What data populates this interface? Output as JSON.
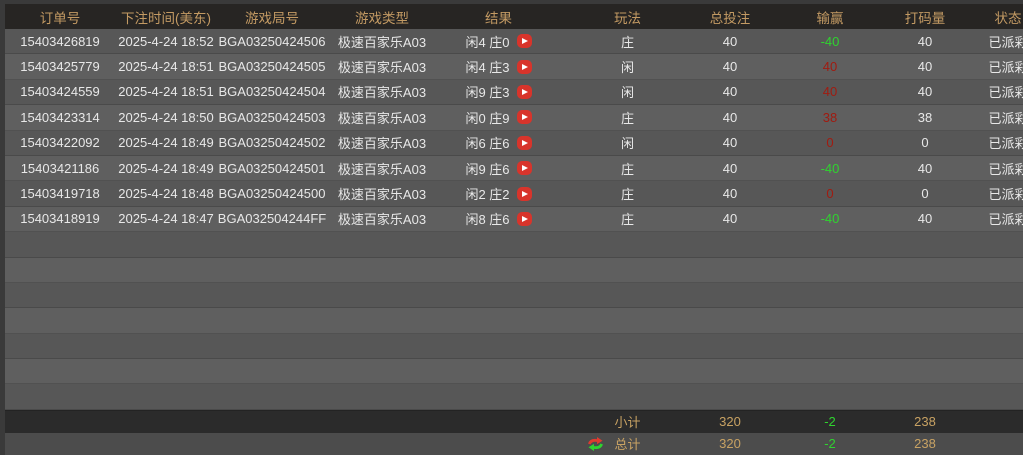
{
  "table": {
    "columns": [
      {
        "key": "order",
        "label": "订单号"
      },
      {
        "key": "time",
        "label": "下注时间(美东)"
      },
      {
        "key": "round",
        "label": "游戏局号"
      },
      {
        "key": "type",
        "label": "游戏类型"
      },
      {
        "key": "result",
        "label": "结果"
      },
      {
        "key": "play",
        "label": "玩法"
      },
      {
        "key": "bet",
        "label": "总投注"
      },
      {
        "key": "winloss",
        "label": "输赢"
      },
      {
        "key": "roll",
        "label": "打码量"
      },
      {
        "key": "status",
        "label": "状态"
      }
    ],
    "rows": [
      {
        "order": "15403426819",
        "time": "2025-4-24 18:52",
        "round": "BGA03250424506",
        "type": "极速百家乐A03",
        "result": "闲4 庄0",
        "play": "庄",
        "bet": "40",
        "winloss": "-40",
        "winloss_color": "green",
        "roll": "40",
        "status": "已派彩"
      },
      {
        "order": "15403425779",
        "time": "2025-4-24 18:51",
        "round": "BGA03250424505",
        "type": "极速百家乐A03",
        "result": "闲4 庄3",
        "play": "闲",
        "bet": "40",
        "winloss": "40",
        "winloss_color": "red",
        "roll": "40",
        "status": "已派彩"
      },
      {
        "order": "15403424559",
        "time": "2025-4-24 18:51",
        "round": "BGA03250424504",
        "type": "极速百家乐A03",
        "result": "闲9 庄3",
        "play": "闲",
        "bet": "40",
        "winloss": "40",
        "winloss_color": "red",
        "roll": "40",
        "status": "已派彩"
      },
      {
        "order": "15403423314",
        "time": "2025-4-24 18:50",
        "round": "BGA03250424503",
        "type": "极速百家乐A03",
        "result": "闲0 庄9",
        "play": "庄",
        "bet": "40",
        "winloss": "38",
        "winloss_color": "red",
        "roll": "38",
        "status": "已派彩"
      },
      {
        "order": "15403422092",
        "time": "2025-4-24 18:49",
        "round": "BGA03250424502",
        "type": "极速百家乐A03",
        "result": "闲6 庄6",
        "play": "闲",
        "bet": "40",
        "winloss": "0",
        "winloss_color": "red",
        "roll": "0",
        "status": "已派彩"
      },
      {
        "order": "15403421186",
        "time": "2025-4-24 18:49",
        "round": "BGA03250424501",
        "type": "极速百家乐A03",
        "result": "闲9 庄6",
        "play": "庄",
        "bet": "40",
        "winloss": "-40",
        "winloss_color": "green",
        "roll": "40",
        "status": "已派彩"
      },
      {
        "order": "15403419718",
        "time": "2025-4-24 18:48",
        "round": "BGA03250424500",
        "type": "极速百家乐A03",
        "result": "闲2 庄2",
        "play": "庄",
        "bet": "40",
        "winloss": "0",
        "winloss_color": "red",
        "roll": "0",
        "status": "已派彩"
      },
      {
        "order": "15403418919",
        "time": "2025-4-24 18:47",
        "round": "BGA032504244FF",
        "type": "极速百家乐A03",
        "result": "闲8 庄6",
        "play": "庄",
        "bet": "40",
        "winloss": "-40",
        "winloss_color": "green",
        "roll": "40",
        "status": "已派彩"
      }
    ],
    "empty_row_count": 7
  },
  "footer": {
    "subtotal_label": "小计",
    "total_label": "总计",
    "subtotal": {
      "bet": "320",
      "winloss": "-2",
      "roll": "238"
    },
    "total": {
      "bet": "320",
      "winloss": "-2",
      "roll": "238"
    }
  },
  "icons": {
    "play_icon": "▶",
    "refresh_icon": "⇄"
  },
  "colors": {
    "header_gold": "#c39a63",
    "footer_gold": "#c8a263",
    "win_red": "#a01b10",
    "loss_green": "#2fd32f",
    "play_button_red": "#d8342b"
  }
}
